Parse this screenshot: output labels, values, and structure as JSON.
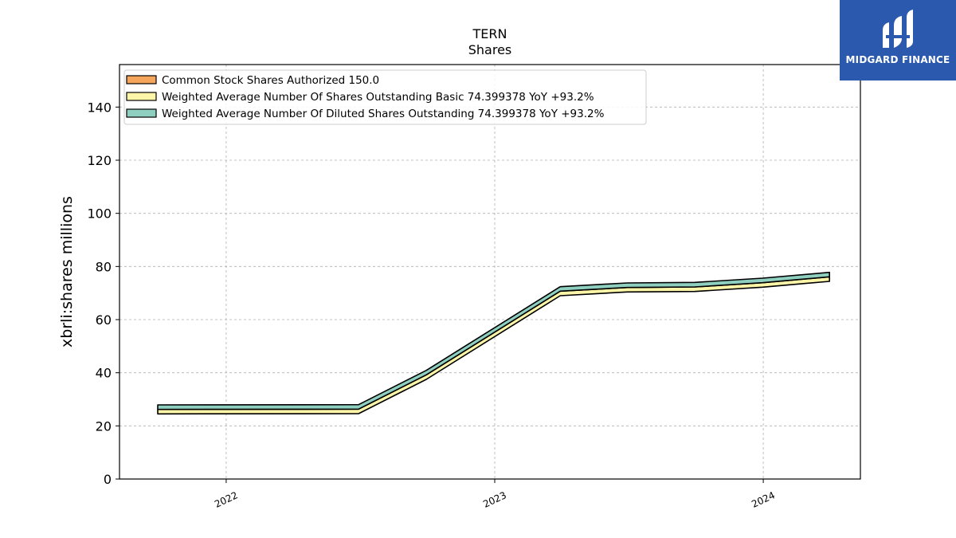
{
  "chart_data": {
    "type": "area",
    "title": "TERN",
    "subtitle": "Shares",
    "xlabel": "",
    "ylabel": "xbrli:shares millions",
    "ylim": [
      0,
      156
    ],
    "xlim": [
      "2021-08-09",
      "2024-05-12"
    ],
    "y_ticks": [
      0,
      20,
      40,
      60,
      80,
      100,
      120,
      140
    ],
    "x_ticks": [
      "2022",
      "2023",
      "2024"
    ],
    "x_tick_dates": [
      "2022-01-01",
      "2023-01-01",
      "2024-01-01"
    ],
    "grid": true,
    "legend_position": "top-left",
    "x": [
      "2021-09-30",
      "2022-06-30",
      "2022-09-30",
      "2023-03-31",
      "2023-06-30",
      "2023-09-30",
      "2023-12-31",
      "2024-03-31"
    ],
    "series": [
      {
        "name": "Common Stock Shares Authorized",
        "legend_label": "Common Stock Shares Authorized  150.0",
        "color": "#f5a55c",
        "values": [
          null,
          null,
          null,
          null,
          null,
          null,
          null,
          null
        ]
      },
      {
        "name": "Weighted Average Number Of Shares Outstanding Basic",
        "legend_label": "Weighted Average Number Of Shares Outstanding Basic  74.399378 YoY +93.2%",
        "color": "#fdf5a8",
        "values": [
          24.5,
          24.6,
          37.5,
          69.0,
          70.4,
          70.6,
          72.2,
          74.4
        ]
      },
      {
        "name": "Weighted Average Number Of Diluted Shares Outstanding",
        "legend_label": "Weighted Average Number Of Diluted Shares Outstanding  74.399378 YoY +93.2%",
        "color": "#8ecfc0",
        "values": [
          24.5,
          24.6,
          37.5,
          69.0,
          70.4,
          70.6,
          72.2,
          74.4
        ]
      }
    ]
  },
  "logo": {
    "text": "MIDGARD FINANCE",
    "color": "#2b59ad"
  }
}
